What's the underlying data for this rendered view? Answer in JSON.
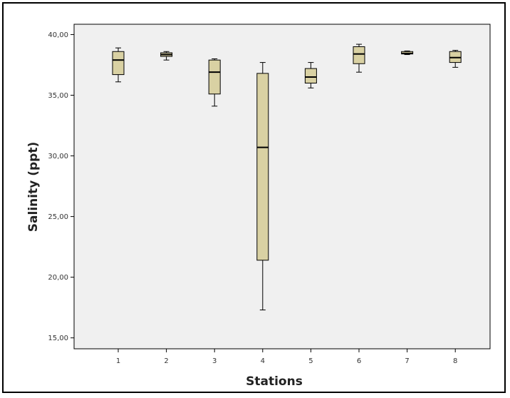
{
  "chart_data": {
    "type": "boxplot",
    "xlabel": "Stations",
    "ylabel": "Salinity (ppt)",
    "categories": [
      "1",
      "2",
      "3",
      "4",
      "5",
      "6",
      "7",
      "8"
    ],
    "yticks": [
      "15,00",
      "20,00",
      "25,00",
      "30,00",
      "35,00",
      "40,00"
    ],
    "ytick_values": [
      15,
      20,
      25,
      30,
      35,
      40
    ],
    "ylim": [
      14.1,
      40.85
    ],
    "grid": false,
    "colors": {
      "box_fill": "#d9d1a3",
      "plot_bg": "#f0f0f0",
      "line": "#000000"
    },
    "boxes": [
      {
        "station": "1",
        "min": 36.1,
        "q1": 36.7,
        "median": 37.9,
        "q3": 38.6,
        "max": 38.9
      },
      {
        "station": "2",
        "min": 37.9,
        "q1": 38.2,
        "median": 38.35,
        "q3": 38.5,
        "max": 38.6
      },
      {
        "station": "3",
        "min": 34.1,
        "q1": 35.1,
        "median": 36.9,
        "q3": 37.9,
        "max": 38.0
      },
      {
        "station": "4",
        "min": 17.3,
        "q1": 21.4,
        "median": 30.7,
        "q3": 36.8,
        "max": 37.7
      },
      {
        "station": "5",
        "min": 35.6,
        "q1": 36.0,
        "median": 36.5,
        "q3": 37.2,
        "max": 37.7
      },
      {
        "station": "6",
        "min": 36.9,
        "q1": 37.6,
        "median": 38.4,
        "q3": 39.0,
        "max": 39.2
      },
      {
        "station": "7",
        "min": 38.35,
        "q1": 38.4,
        "median": 38.45,
        "q3": 38.6,
        "max": 38.65
      },
      {
        "station": "8",
        "min": 37.3,
        "q1": 37.7,
        "median": 38.1,
        "q3": 38.6,
        "max": 38.7
      }
    ]
  }
}
